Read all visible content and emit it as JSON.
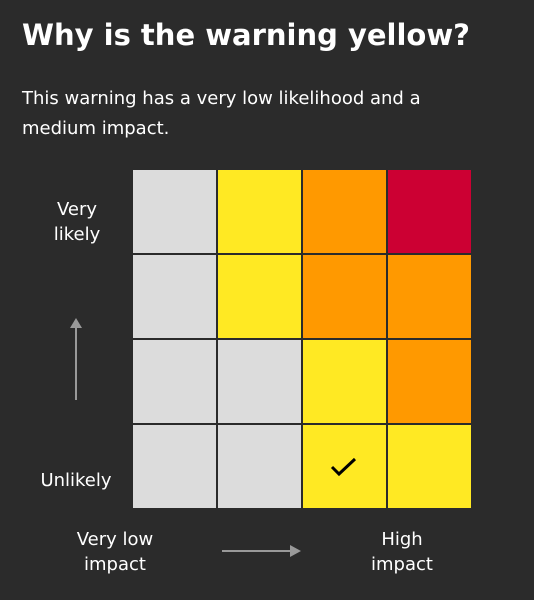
{
  "header": {
    "title": "Why is the warning yellow?",
    "description": "This warning has a very low likelihood and a medium impact."
  },
  "matrix": {
    "likelihood_top": "Very likely",
    "likelihood_bottom": "Unlikely",
    "impact_left": "Very low impact",
    "impact_right": "High impact",
    "rows": [
      [
        "#dcdcdc",
        "#ffe923",
        "#ff9900",
        "#cc0033"
      ],
      [
        "#dcdcdc",
        "#ffe923",
        "#ff9900",
        "#ff9900"
      ],
      [
        "#dcdcdc",
        "#dcdcdc",
        "#ffe923",
        "#ff9900"
      ],
      [
        "#dcdcdc",
        "#dcdcdc",
        "#ffe923",
        "#ffe923"
      ]
    ],
    "selected": {
      "row": 3,
      "col": 2
    }
  }
}
